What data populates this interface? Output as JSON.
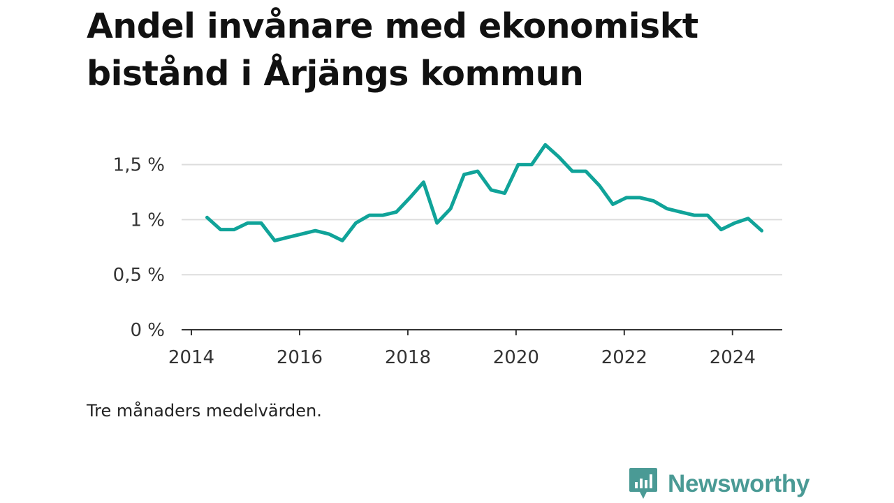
{
  "title": "Andel invånare med ekonomiskt bistånd i Årjängs kommun",
  "note": "Tre månaders medelvärden.",
  "brand": {
    "name": "Newsworthy",
    "icon": "newsworthy-logo-icon",
    "color": "#4a9a95"
  },
  "chart_data": {
    "type": "line",
    "title": "Andel invånare med ekonomiskt bistånd i Årjängs kommun",
    "xlabel": "",
    "ylabel": "",
    "xlim": [
      2014,
      2025.1
    ],
    "ylim": [
      0,
      1.65
    ],
    "grid": true,
    "color": "#10a399",
    "x_ticks": [
      2014,
      2016,
      2018,
      2020,
      2022,
      2024
    ],
    "x_tick_labels": [
      "2014",
      "2016",
      "2018",
      "2020",
      "2022",
      "2024"
    ],
    "y_ticks": [
      0,
      0.5,
      1,
      1.5
    ],
    "y_tick_labels": [
      "0 %",
      "0,5 %",
      "1 %",
      "1,5 %"
    ],
    "series": [
      {
        "x": [
          2014.29,
          2014.54,
          2014.79,
          2015.04,
          2015.29,
          2015.54,
          2015.79,
          2016.04,
          2016.29,
          2016.54,
          2016.79,
          2017.04,
          2017.29,
          2017.54,
          2017.79,
          2018.04,
          2018.29,
          2018.54,
          2018.79,
          2019.04,
          2019.29,
          2019.54,
          2019.79,
          2020.04,
          2020.29,
          2020.54,
          2020.79,
          2021.04,
          2021.29,
          2021.54,
          2021.79,
          2022.04,
          2022.29,
          2022.54,
          2022.79,
          2023.04,
          2023.29,
          2023.54,
          2023.79,
          2024.04,
          2024.29,
          2024.54
        ],
        "y": [
          1.02,
          0.91,
          0.91,
          0.97,
          0.97,
          0.81,
          0.84,
          0.87,
          0.9,
          0.87,
          0.81,
          0.97,
          1.04,
          1.04,
          1.07,
          1.2,
          1.34,
          0.97,
          1.1,
          1.41,
          1.44,
          1.27,
          1.24,
          1.5,
          1.5,
          1.68,
          1.57,
          1.44,
          1.44,
          1.31,
          1.14,
          1.2,
          1.2,
          1.17,
          1.1,
          1.07,
          1.04,
          1.04,
          0.91,
          0.97,
          1.01,
          0.9
        ]
      }
    ]
  }
}
